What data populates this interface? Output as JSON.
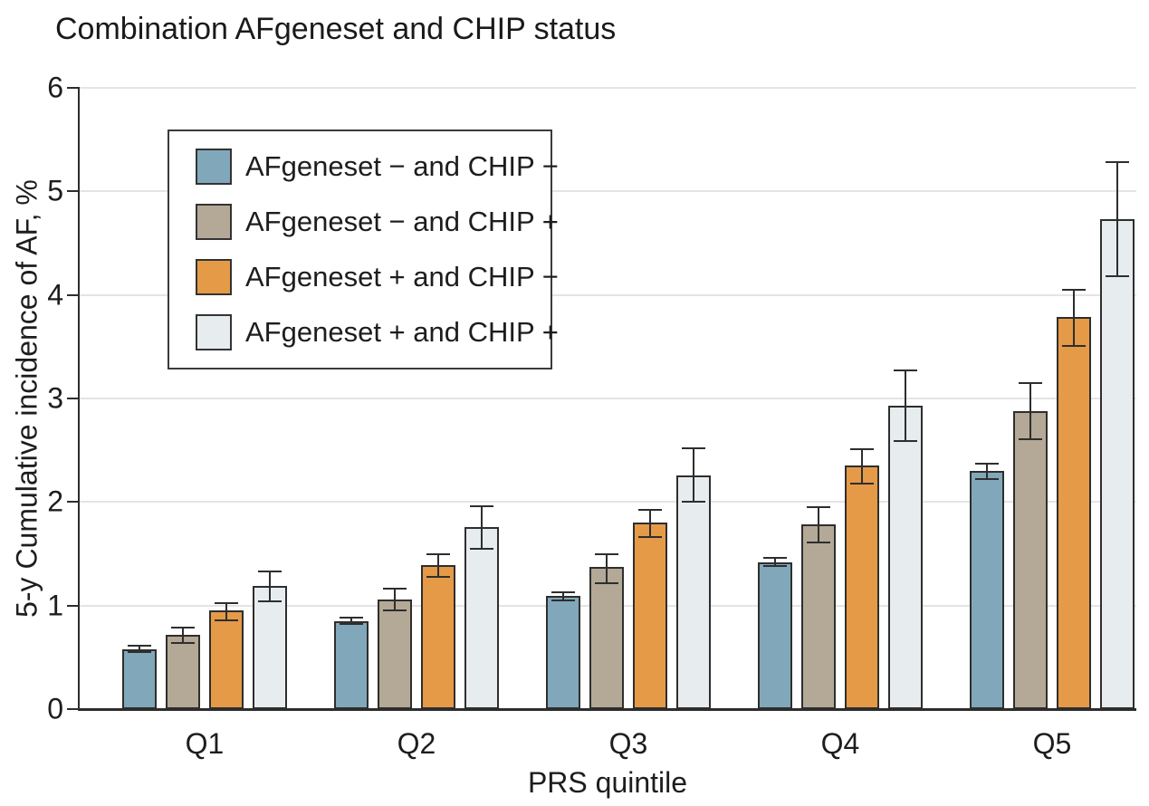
{
  "figure": {
    "background": "#ffffff",
    "text_color": "#1d1d1d"
  },
  "chart_data": {
    "type": "bar",
    "title": "Combination AFgeneset and CHIP status",
    "xlabel": "PRS quintile",
    "ylabel": "5-y Cumulative incidence of AF, %",
    "categories": [
      "Q1",
      "Q2",
      "Q3",
      "Q4",
      "Q5"
    ],
    "ylim": [
      0,
      6
    ],
    "yticks": [
      0,
      1,
      2,
      3,
      4,
      5,
      6
    ],
    "grid": true,
    "legend_position": "upper left inside",
    "bar_outline_color": "#2e2e2e",
    "error_bar_color": "#2e2e2e",
    "gridline_color": "#e4e4e4",
    "series": [
      {
        "name": "AFgeneset − and CHIP −",
        "color": "#81A8BA",
        "values": [
          0.58,
          0.85,
          1.09,
          1.42,
          2.3
        ],
        "ci_low": [
          0.55,
          0.82,
          1.05,
          1.38,
          2.22
        ],
        "ci_high": [
          0.61,
          0.88,
          1.13,
          1.46,
          2.37
        ]
      },
      {
        "name": "AFgeneset − and CHIP +",
        "color": "#B4A996",
        "values": [
          0.72,
          1.06,
          1.37,
          1.78,
          2.88
        ],
        "ci_low": [
          0.64,
          0.95,
          1.22,
          1.61,
          2.61
        ],
        "ci_high": [
          0.79,
          1.16,
          1.5,
          1.95,
          3.15
        ]
      },
      {
        "name": "AFgeneset + and CHIP −",
        "color": "#E59A48",
        "values": [
          0.95,
          1.39,
          1.8,
          2.35,
          3.79
        ],
        "ci_low": [
          0.86,
          1.28,
          1.66,
          2.18,
          3.51
        ],
        "ci_high": [
          1.02,
          1.5,
          1.92,
          2.51,
          4.05
        ]
      },
      {
        "name": "AFgeneset + and CHIP +",
        "color": "#E7ECEF",
        "values": [
          1.19,
          1.76,
          2.26,
          2.93,
          4.73
        ],
        "ci_low": [
          1.04,
          1.55,
          2.0,
          2.59,
          4.18
        ],
        "ci_high": [
          1.33,
          1.96,
          2.52,
          3.27,
          5.28
        ]
      }
    ]
  }
}
